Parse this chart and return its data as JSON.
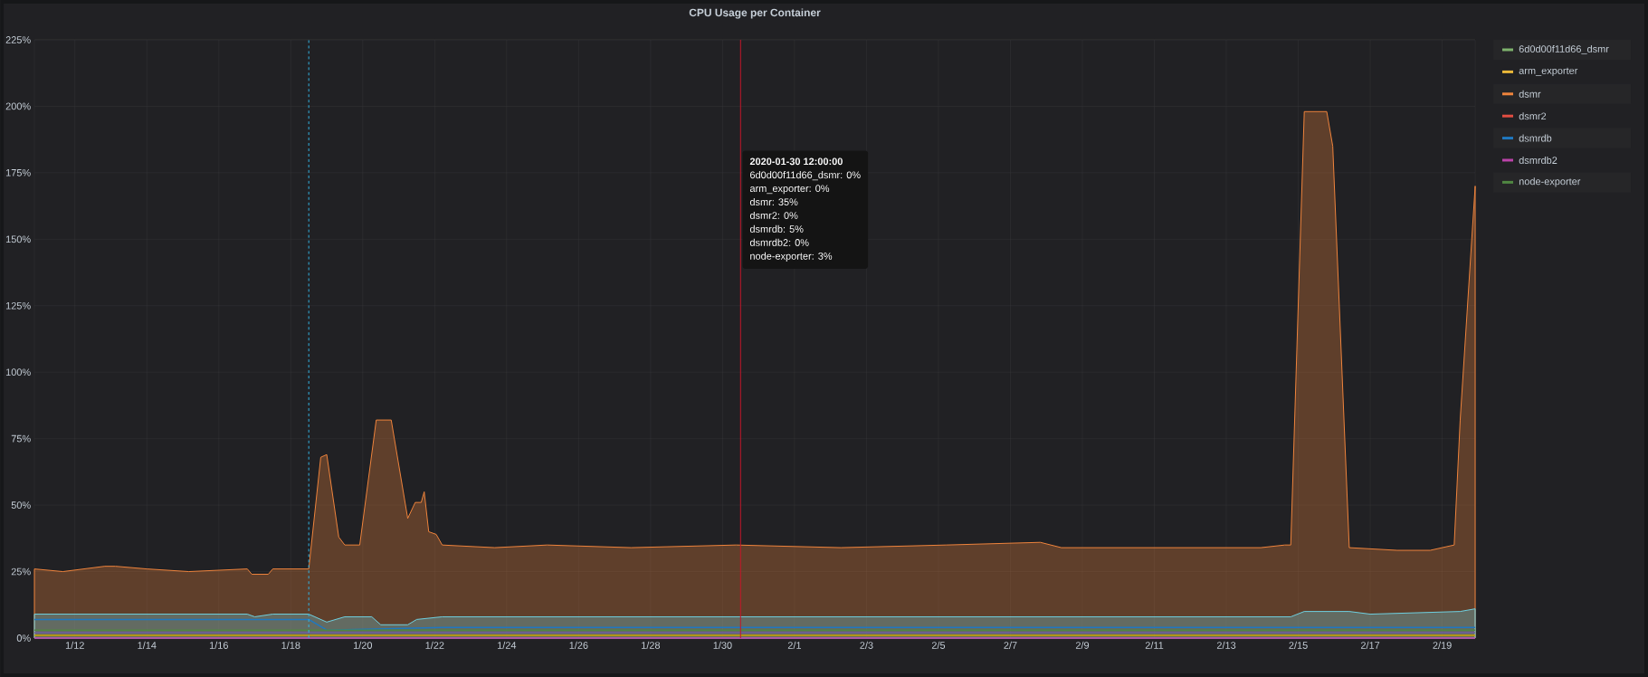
{
  "chart_data": {
    "type": "area",
    "title": "CPU Usage per Container",
    "xlim": [
      "2020-01-10T21:00",
      "2020-02-19T22:00"
    ],
    "xticks": [
      {
        "value": "2020-01-12",
        "label": "1/12"
      },
      {
        "value": "2020-01-14",
        "label": "1/14"
      },
      {
        "value": "2020-01-16",
        "label": "1/16"
      },
      {
        "value": "2020-01-18",
        "label": "1/18"
      },
      {
        "value": "2020-01-20",
        "label": "1/20"
      },
      {
        "value": "2020-01-22",
        "label": "1/22"
      },
      {
        "value": "2020-01-24",
        "label": "1/24"
      },
      {
        "value": "2020-01-26",
        "label": "1/26"
      },
      {
        "value": "2020-01-28",
        "label": "1/28"
      },
      {
        "value": "2020-01-30",
        "label": "1/30"
      },
      {
        "value": "2020-02-01",
        "label": "2/1"
      },
      {
        "value": "2020-02-03",
        "label": "2/3"
      },
      {
        "value": "2020-02-05",
        "label": "2/5"
      },
      {
        "value": "2020-02-07",
        "label": "2/7"
      },
      {
        "value": "2020-02-09",
        "label": "2/9"
      },
      {
        "value": "2020-02-11",
        "label": "2/11"
      },
      {
        "value": "2020-02-13",
        "label": "2/13"
      },
      {
        "value": "2020-02-15",
        "label": "2/15"
      },
      {
        "value": "2020-02-17",
        "label": "2/17"
      },
      {
        "value": "2020-02-19",
        "label": "2/19"
      }
    ],
    "ylim": [
      0,
      225
    ],
    "yticks": [
      {
        "value": 0,
        "label": "0%"
      },
      {
        "value": 25,
        "label": "25%"
      },
      {
        "value": 50,
        "label": "50%"
      },
      {
        "value": 75,
        "label": "75%"
      },
      {
        "value": 100,
        "label": "100%"
      },
      {
        "value": 125,
        "label": "125%"
      },
      {
        "value": 150,
        "label": "150%"
      },
      {
        "value": 175,
        "label": "175%"
      },
      {
        "value": 200,
        "label": "200%"
      },
      {
        "value": 225,
        "label": "225%"
      }
    ],
    "grid": true,
    "legend": "right",
    "series": [
      {
        "name": "6d0d00f11d66_dsmr",
        "color": "#7eb26d",
        "values": [
          null
        ]
      },
      {
        "name": "arm_exporter",
        "color": "#eab839",
        "values": [
          null
        ]
      },
      {
        "color": "#6ed0e0",
        "x": [
          "2020-01-10T21:00",
          "2020-01-16T19:00",
          "2020-01-17T00:00",
          "2020-01-17T12:00",
          "2020-01-18T12:00",
          "2020-01-19T00:00",
          "2020-01-19T12:00",
          "2020-01-20T06:00",
          "2020-01-20T12:00",
          "2020-01-21T06:00",
          "2020-01-21T12:00",
          "2020-01-22T05:00",
          "2020-02-14T19:00",
          "2020-02-15T04:00",
          "2020-02-16T10:00",
          "2020-02-17T00:00",
          "2020-02-19T12:00",
          "2020-02-19T22:00"
        ],
        "values": [
          9,
          9,
          8,
          9,
          9,
          6,
          8,
          8,
          5,
          5,
          7,
          8,
          8,
          10,
          10,
          9,
          10,
          11
        ]
      },
      {
        "name": "dsmr",
        "color": "#ef843c",
        "x": [
          "2020-01-10T21:00",
          "2020-01-11T16:00",
          "2020-01-12T20:00",
          "2020-01-13T03:00",
          "2020-01-14T00:00",
          "2020-01-15T04:00",
          "2020-01-16T19:00",
          "2020-01-16T22:00",
          "2020-01-17T09:00",
          "2020-01-17T12:00",
          "2020-01-18T10:00",
          "2020-01-18T12:00",
          "2020-01-18T20:00",
          "2020-01-19T00:00",
          "2020-01-19T08:00",
          "2020-01-19T12:00",
          "2020-01-19T22:00",
          "2020-01-20T09:00",
          "2020-01-20T19:00",
          "2020-01-21T06:00",
          "2020-01-21T11:00",
          "2020-01-21T15:00",
          "2020-01-21T17:00",
          "2020-01-21T20:00",
          "2020-01-22T01:00",
          "2020-01-22T05:00",
          "2020-01-23T16:00",
          "2020-01-25T03:00",
          "2020-01-27T11:00",
          "2020-01-30T09:00",
          "2020-02-02T07:00",
          "2020-02-05T05:00",
          "2020-02-07T20:00",
          "2020-02-08T10:00",
          "2020-02-11T01:00",
          "2020-02-13T23:00",
          "2020-02-14T15:00",
          "2020-02-14T19:00",
          "2020-02-15T04:00",
          "2020-02-15T19:00",
          "2020-02-15T23:00",
          "2020-02-16T10:00",
          "2020-02-17T18:00",
          "2020-02-18T16:00",
          "2020-02-19T08:00",
          "2020-02-19T12:00",
          "2020-02-19T22:00"
        ],
        "values": [
          26,
          25,
          27,
          27,
          26,
          25,
          26,
          24,
          24,
          26,
          26,
          26,
          68,
          69,
          38,
          35,
          35,
          82,
          82,
          45,
          51,
          51,
          55,
          40,
          39,
          35,
          34,
          35,
          34,
          35,
          34,
          35,
          36,
          34,
          34,
          34,
          35,
          35,
          198,
          198,
          185,
          34,
          33,
          33,
          35,
          82,
          170
        ]
      },
      {
        "name": "dsmr2",
        "color": "#e24d42",
        "values": [
          null
        ]
      },
      {
        "name": "dsmrdb",
        "type": "line",
        "color": "#1f78c1",
        "x": [
          "2020-01-10T21:00",
          "2020-01-18T12:00",
          "2020-01-19T00:00",
          "2020-01-22T05:00",
          "2020-02-19T22:00"
        ],
        "values": [
          7,
          7,
          3,
          4,
          4
        ]
      },
      {
        "name": "dsmrdb2",
        "type": "line",
        "color": "#ba43a9",
        "x": [
          "2020-01-10T21:00",
          "2020-02-19T22:00"
        ],
        "values": [
          0,
          0
        ]
      },
      {
        "type": "line",
        "color": "#705da0",
        "x": [
          "2020-01-10T21:00",
          "2020-02-19T22:00"
        ],
        "values": [
          2,
          2
        ]
      },
      {
        "name": "node-exporter",
        "type": "line",
        "color": "#508642",
        "x": [
          "2020-01-10T21:00",
          "2020-02-19T22:00"
        ],
        "values": [
          3,
          3
        ]
      },
      {
        "type": "line",
        "color": "#cca300",
        "x": [
          "2020-01-10T21:00",
          "2020-02-19T22:00"
        ],
        "values": [
          1,
          1
        ]
      }
    ],
    "ref_lines": [
      {
        "axis": "x",
        "value": "2020-01-18T12:00",
        "color": "#33b5e5",
        "line_style": "dashed"
      },
      {
        "axis": "x",
        "value": "2020-01-30T12:00",
        "color": "#c4162a",
        "line_style": "solid",
        "label": "2020-01-30 12:00:00"
      }
    ],
    "annotations": [
      "6d0d00f11d66_dsmr: 0%",
      "arm_exporter: 0%",
      "dsmr: 35%",
      "dsmr2: 0%",
      "dsmrdb: 5%",
      "dsmrdb2: 0%",
      "node-exporter: 3%"
    ]
  }
}
